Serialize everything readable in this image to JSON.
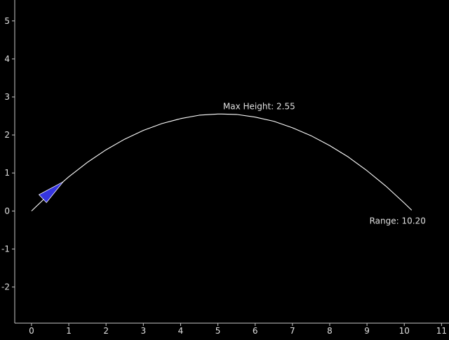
{
  "chart_data": {
    "type": "line",
    "title": "",
    "xlabel": "",
    "ylabel": "",
    "xlim": [
      -0.45,
      11.2
    ],
    "ylim": [
      -2.95,
      5.55
    ],
    "x_ticks": [
      0,
      1,
      2,
      3,
      4,
      5,
      6,
      7,
      8,
      9,
      10,
      11
    ],
    "y_ticks": [
      -2,
      -1,
      0,
      1,
      2,
      3,
      4,
      5
    ],
    "grid": false,
    "series": [
      {
        "name": "",
        "color": "#ffffff",
        "x": [
          0,
          0.5,
          1,
          1.5,
          2,
          2.5,
          3,
          3.5,
          4,
          4.5,
          5,
          5.1,
          5.5,
          6,
          6.5,
          7,
          7.5,
          8,
          8.5,
          9,
          9.5,
          10,
          10.2
        ],
        "y": [
          0,
          0.47,
          0.9,
          1.28,
          1.61,
          1.89,
          2.12,
          2.3,
          2.43,
          2.52,
          2.55,
          2.55,
          2.54,
          2.47,
          2.36,
          2.19,
          1.98,
          1.72,
          1.42,
          1.06,
          0.66,
          0.21,
          0.02
        ]
      }
    ],
    "annotations": [
      {
        "text": "Max Height: 2.55",
        "x": 5.1,
        "y": 2.55
      },
      {
        "text": "Range: 10.20",
        "x": 10.2,
        "y": 0
      }
    ],
    "projectile_marker": {
      "shape": "arrowhead",
      "color": "#3535e0",
      "tip": [
        0.85,
        0.77
      ],
      "back_left": [
        0.2,
        0.43
      ],
      "back_right": [
        0.4,
        0.22
      ]
    },
    "colors": {
      "background": "#000000",
      "axis": "#c8c8c8",
      "text": "#e0e0e0",
      "curve": "#ffffff"
    }
  }
}
